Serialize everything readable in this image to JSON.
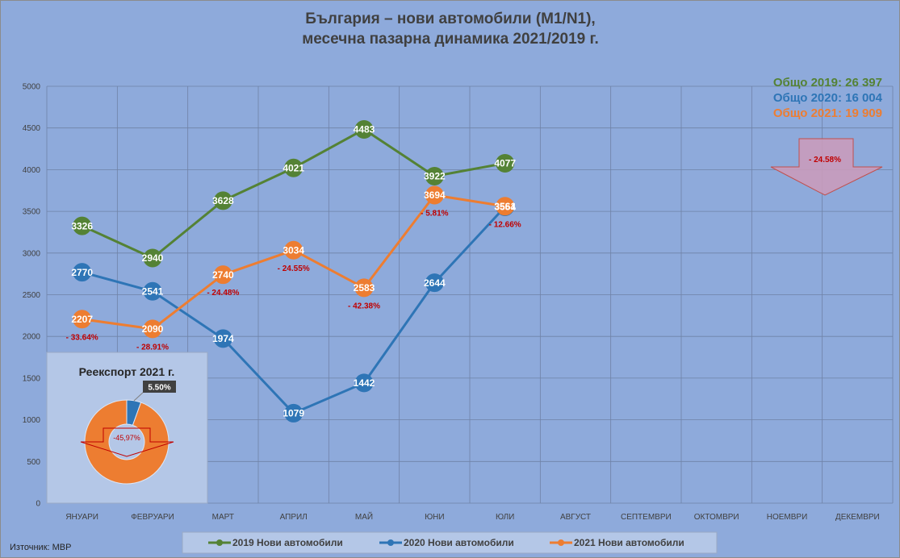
{
  "chart_data": [
    {
      "type": "line",
      "title": [
        "България – нови автомобили (M1/N1),",
        "месечна пазарна динамика 2021/2019 г."
      ],
      "categories": [
        "ЯНУАРИ",
        "ФЕВРУАРИ",
        "МАРТ",
        "АПРИЛ",
        "МАЙ",
        "ЮНИ",
        "ЮЛИ",
        "АВГУСТ",
        "СЕПТЕМВРИ",
        "ОКТОМВРИ",
        "НОЕМВРИ",
        "ДЕКЕМВРИ"
      ],
      "ylim": [
        0,
        5000
      ],
      "yticks": [
        0,
        500,
        1000,
        1500,
        2000,
        2500,
        3000,
        3500,
        4000,
        4500,
        5000
      ],
      "grid": true,
      "legend_position": "bottom",
      "series": [
        {
          "name": "2019 Нови автомобили",
          "color": "#548235",
          "values": [
            3326,
            2940,
            3628,
            4021,
            4483,
            3922,
            4077,
            null,
            null,
            null,
            null,
            null
          ]
        },
        {
          "name": "2020 Нови автомобили",
          "color": "#2e75b6",
          "values": [
            2770,
            2541,
            1974,
            1079,
            1442,
            2644,
            3554,
            null,
            null,
            null,
            null,
            null
          ]
        },
        {
          "name": "2021 Нови автомобили",
          "color": "#ed7d31",
          "values": [
            2207,
            2090,
            2740,
            3034,
            2583,
            3694,
            3561,
            null,
            null,
            null,
            null,
            null
          ]
        }
      ],
      "change_labels": [
        "- 33.64%",
        "- 28.91%",
        "- 24.48%",
        "- 24.55%",
        "- 42.38%",
        "- 5.81%",
        "- 12.66%"
      ],
      "totals": [
        {
          "text": "Общо 2019: 26 397",
          "color": "#548235"
        },
        {
          "text": "Общо 2020: 16 004",
          "color": "#2e75b6"
        },
        {
          "text": "Общо 2021: 19 909",
          "color": "#ed7d31"
        }
      ],
      "total_change": "- 24.58%"
    },
    {
      "type": "pie",
      "donut": true,
      "title": "Реекспорт 2021 г.",
      "slices": [
        {
          "value": 5.5,
          "label": "5.50%",
          "color": "#2e75b6"
        },
        {
          "value": 94.5,
          "color": "#ed7d31"
        }
      ],
      "change": "-45,97%"
    }
  ],
  "source": "Източник: МВР",
  "colors": {
    "background": "#8eaadb",
    "panel": "#b4c7e7",
    "annotation_red": "#c00000",
    "arrow_fill": "#c99bbb"
  }
}
